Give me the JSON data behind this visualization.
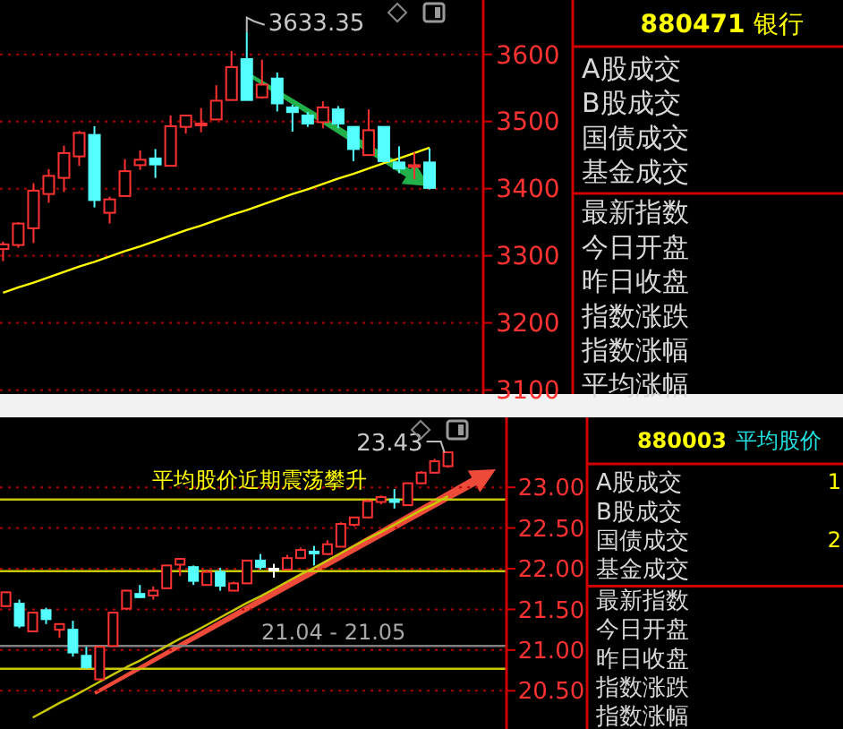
{
  "chart_data": [
    {
      "type": "candlestick",
      "categories": [
        null,
        null,
        null,
        null,
        null,
        null,
        null,
        null,
        null,
        null,
        null,
        null,
        null,
        null,
        null,
        null,
        null,
        null,
        null,
        null,
        null,
        null,
        null,
        null,
        null,
        null,
        null,
        null,
        null
      ],
      "ohlc": [
        [
          3310,
          3321,
          3292,
          3317
        ],
        [
          3316,
          3350,
          3312,
          3348
        ],
        [
          3341,
          3408,
          3319,
          3397
        ],
        [
          3392,
          3429,
          3379,
          3419
        ],
        [
          3416,
          3464,
          3395,
          3453
        ],
        [
          3448,
          3486,
          3434,
          3483
        ],
        [
          3480,
          3493,
          3372,
          3383
        ],
        [
          3364,
          3388,
          3348,
          3384
        ],
        [
          3389,
          3444,
          3389,
          3426
        ],
        [
          3435,
          3457,
          3428,
          3443
        ],
        [
          3445,
          3459,
          3416,
          3436
        ],
        [
          3434,
          3509,
          3434,
          3493
        ],
        [
          3492,
          3509,
          3482,
          3509
        ],
        [
          3496,
          3520,
          3484,
          3497
        ],
        [
          3503,
          3554,
          3503,
          3531
        ],
        [
          3532,
          3605,
          3532,
          3581
        ],
        [
          3593,
          3633.35,
          3532,
          3532
        ],
        [
          3536,
          3592,
          3534,
          3555
        ],
        [
          3564,
          3573,
          3515,
          3527
        ],
        [
          3521,
          3525,
          3485,
          3514
        ],
        [
          3509,
          3514,
          3492,
          3497
        ],
        [
          3499,
          3530,
          3490,
          3521
        ],
        [
          3518,
          3523,
          3490,
          3497
        ],
        [
          3492,
          3492,
          3441,
          3459
        ],
        [
          3450,
          3518,
          3450,
          3487
        ],
        [
          3492,
          3492,
          3439,
          3441
        ],
        [
          3439,
          3463,
          3423,
          3430
        ],
        [
          3433,
          3454,
          3414,
          3435
        ],
        [
          3439,
          3460,
          3399,
          3401
        ]
      ],
      "colors": [
        "#ff3232",
        "#ff3232",
        "#ff3232",
        "#ff3232",
        "#ff3232",
        "#ff3232",
        "#54ffff",
        "#ff3232",
        "#ff3232",
        "#ff3232",
        "#54ffff",
        "#ff3232",
        "#ff3232",
        "#ff3232",
        "#ff3232",
        "#ff3232",
        "#54ffff",
        "#ff3232",
        "#54ffff",
        "#54ffff",
        "#54ffff",
        "#ff3232",
        "#54ffff",
        "#54ffff",
        "#ff3232",
        "#54ffff",
        "#54ffff",
        "#ff3232",
        "#54ffff"
      ],
      "series": [
        {
          "type": "line",
          "color": "#ffff00",
          "values": [
            3245,
            3253,
            3260,
            3268,
            3276,
            3284,
            3291,
            3299,
            3307,
            3314,
            3322,
            3330,
            3338,
            3345,
            3353,
            3361,
            3368,
            3376,
            3384,
            3392,
            3399,
            3407,
            3415,
            3422,
            3430,
            3438,
            3445,
            3453,
            3461
          ]
        }
      ],
      "ylim": [
        3094,
        3681
      ],
      "yticks": [
        3100,
        3200,
        3300,
        3400,
        3500,
        3600
      ],
      "grid": "y",
      "tick_labels": "y",
      "annotations": [
        "3633.35"
      ]
    },
    {
      "type": "other",
      "title": "880471",
      "subtitle": "银行",
      "categories": [
        "A股成交",
        "B股成交",
        "国债成交",
        "基金成交",
        "最新指数",
        "今日开盘",
        "昨日收盘",
        "指数涨跌",
        "指数涨幅",
        "平均涨幅"
      ]
    },
    {
      "type": "candlestick",
      "categories": [
        null,
        null,
        null,
        null,
        null,
        null,
        null,
        null,
        null,
        null,
        null,
        null,
        null,
        null,
        null,
        null,
        null,
        null,
        null,
        null,
        null,
        null,
        null,
        null,
        null,
        null,
        null,
        null,
        null,
        null,
        null,
        null,
        null,
        null
      ],
      "ohlc": [
        [
          21.54,
          21.71,
          21.54,
          21.71
        ],
        [
          21.57,
          21.62,
          21.27,
          21.3
        ],
        [
          21.23,
          21.46,
          21.23,
          21.46
        ],
        [
          21.49,
          21.52,
          21.32,
          21.38
        ],
        [
          21.25,
          21.32,
          21.15,
          21.32
        ],
        [
          21.25,
          21.36,
          20.92,
          20.97
        ],
        [
          20.93,
          21.04,
          20.77,
          20.79
        ],
        [
          20.64,
          21.04,
          20.64,
          21.04
        ],
        [
          21.05,
          21.46,
          21.05,
          21.46
        ],
        [
          21.51,
          21.74,
          21.49,
          21.73
        ],
        [
          21.69,
          21.8,
          21.64,
          21.65
        ],
        [
          21.67,
          21.78,
          21.62,
          21.73
        ],
        [
          21.76,
          22.04,
          21.76,
          22.04
        ],
        [
          22.05,
          22.13,
          21.91,
          22.12
        ],
        [
          22.02,
          22.04,
          21.8,
          21.85
        ],
        [
          21.8,
          21.99,
          21.8,
          21.96
        ],
        [
          21.96,
          22.01,
          21.73,
          21.79
        ],
        [
          21.73,
          21.84,
          21.73,
          21.82
        ],
        [
          21.82,
          22.1,
          21.82,
          22.1
        ],
        [
          22.1,
          22.18,
          21.99,
          22.02
        ],
        [
          22.0,
          22.06,
          21.89,
          22.0
        ],
        [
          21.99,
          22.17,
          21.99,
          22.13
        ],
        [
          22.13,
          22.26,
          22.12,
          22.23
        ],
        [
          22.21,
          22.28,
          22.04,
          22.2
        ],
        [
          22.18,
          22.35,
          22.17,
          22.3
        ],
        [
          22.27,
          22.57,
          22.27,
          22.55
        ],
        [
          22.54,
          22.63,
          22.52,
          22.63
        ],
        [
          22.63,
          22.85,
          22.63,
          22.83
        ],
        [
          22.82,
          22.9,
          22.79,
          22.88
        ],
        [
          22.85,
          22.98,
          22.74,
          22.82
        ],
        [
          22.78,
          23.05,
          22.78,
          23.05
        ],
        [
          23.05,
          23.2,
          23.04,
          23.18
        ],
        [
          23.18,
          23.35,
          23.17,
          23.32
        ],
        [
          23.26,
          23.43,
          23.24,
          23.43
        ]
      ],
      "colors": [
        "#ff3232",
        "#54ffff",
        "#ff3232",
        "#54ffff",
        "#ff3232",
        "#54ffff",
        "#54ffff",
        "#ff3232",
        "#ff3232",
        "#ff3232",
        "#54ffff",
        "#ff3232",
        "#ff3232",
        "#ff3232",
        "#54ffff",
        "#ff3232",
        "#54ffff",
        "#ff3232",
        "#ff3232",
        "#54ffff",
        "#ffffff",
        "#ff3232",
        "#ff3232",
        "#54ffff",
        "#ff3232",
        "#ff3232",
        "#ff3232",
        "#ff3232",
        "#ff3232",
        "#54ffff",
        "#ff3232",
        "#ff3232",
        "#ff3232",
        "#ff3232"
      ],
      "series": [
        {
          "type": "line",
          "color": "#c8c800",
          "values": [
            null,
            null,
            20.17,
            20.26,
            20.35,
            20.43,
            20.52,
            20.61,
            20.7,
            20.79,
            20.87,
            20.96,
            21.05,
            21.14,
            21.22,
            21.31,
            21.4,
            21.49,
            21.58,
            21.66,
            21.75,
            21.84,
            21.93,
            22.01,
            22.1,
            22.19,
            22.28,
            22.37,
            22.45,
            22.54,
            22.63,
            22.72,
            22.8,
            22.89
          ]
        }
      ],
      "ylim": [
        20.03,
        23.86
      ],
      "yticks": [
        {
          "value": 20.5,
          "label": "20.50"
        },
        {
          "value": 21,
          "label": "21.00"
        },
        {
          "value": 21.5,
          "label": "21.50"
        },
        {
          "value": 22,
          "label": "22.00"
        },
        {
          "value": 22.5,
          "label": "22.50"
        },
        {
          "value": 23,
          "label": "23.00"
        }
      ],
      "grid": "y",
      "tick_labels": "y",
      "ref_lines": [
        {
          "axis": "y",
          "value": 22.85,
          "color": "#c8c800"
        },
        {
          "axis": "y",
          "value": 21.97,
          "color": "#c8c800"
        },
        {
          "axis": "y",
          "value": 20.77,
          "color": "#c8c800"
        },
        {
          "axis": "y",
          "value": 21.05,
          "color": "#808080"
        }
      ],
      "annotations": [
        "平均股价近期震荡攀升",
        "23.43",
        "21.04 - 21.05"
      ]
    },
    {
      "type": "other",
      "title": "880003",
      "subtitle": "平均股价",
      "categories": [
        "A股成交",
        "B股成交",
        "国债成交",
        "基金成交",
        "最新指数",
        "今日开盘",
        "昨日收盘",
        "指数涨跌",
        "指数涨幅"
      ],
      "values": [
        1,
        null,
        2,
        null,
        null,
        null,
        null,
        null,
        null
      ],
      "data_labels": true
    }
  ]
}
